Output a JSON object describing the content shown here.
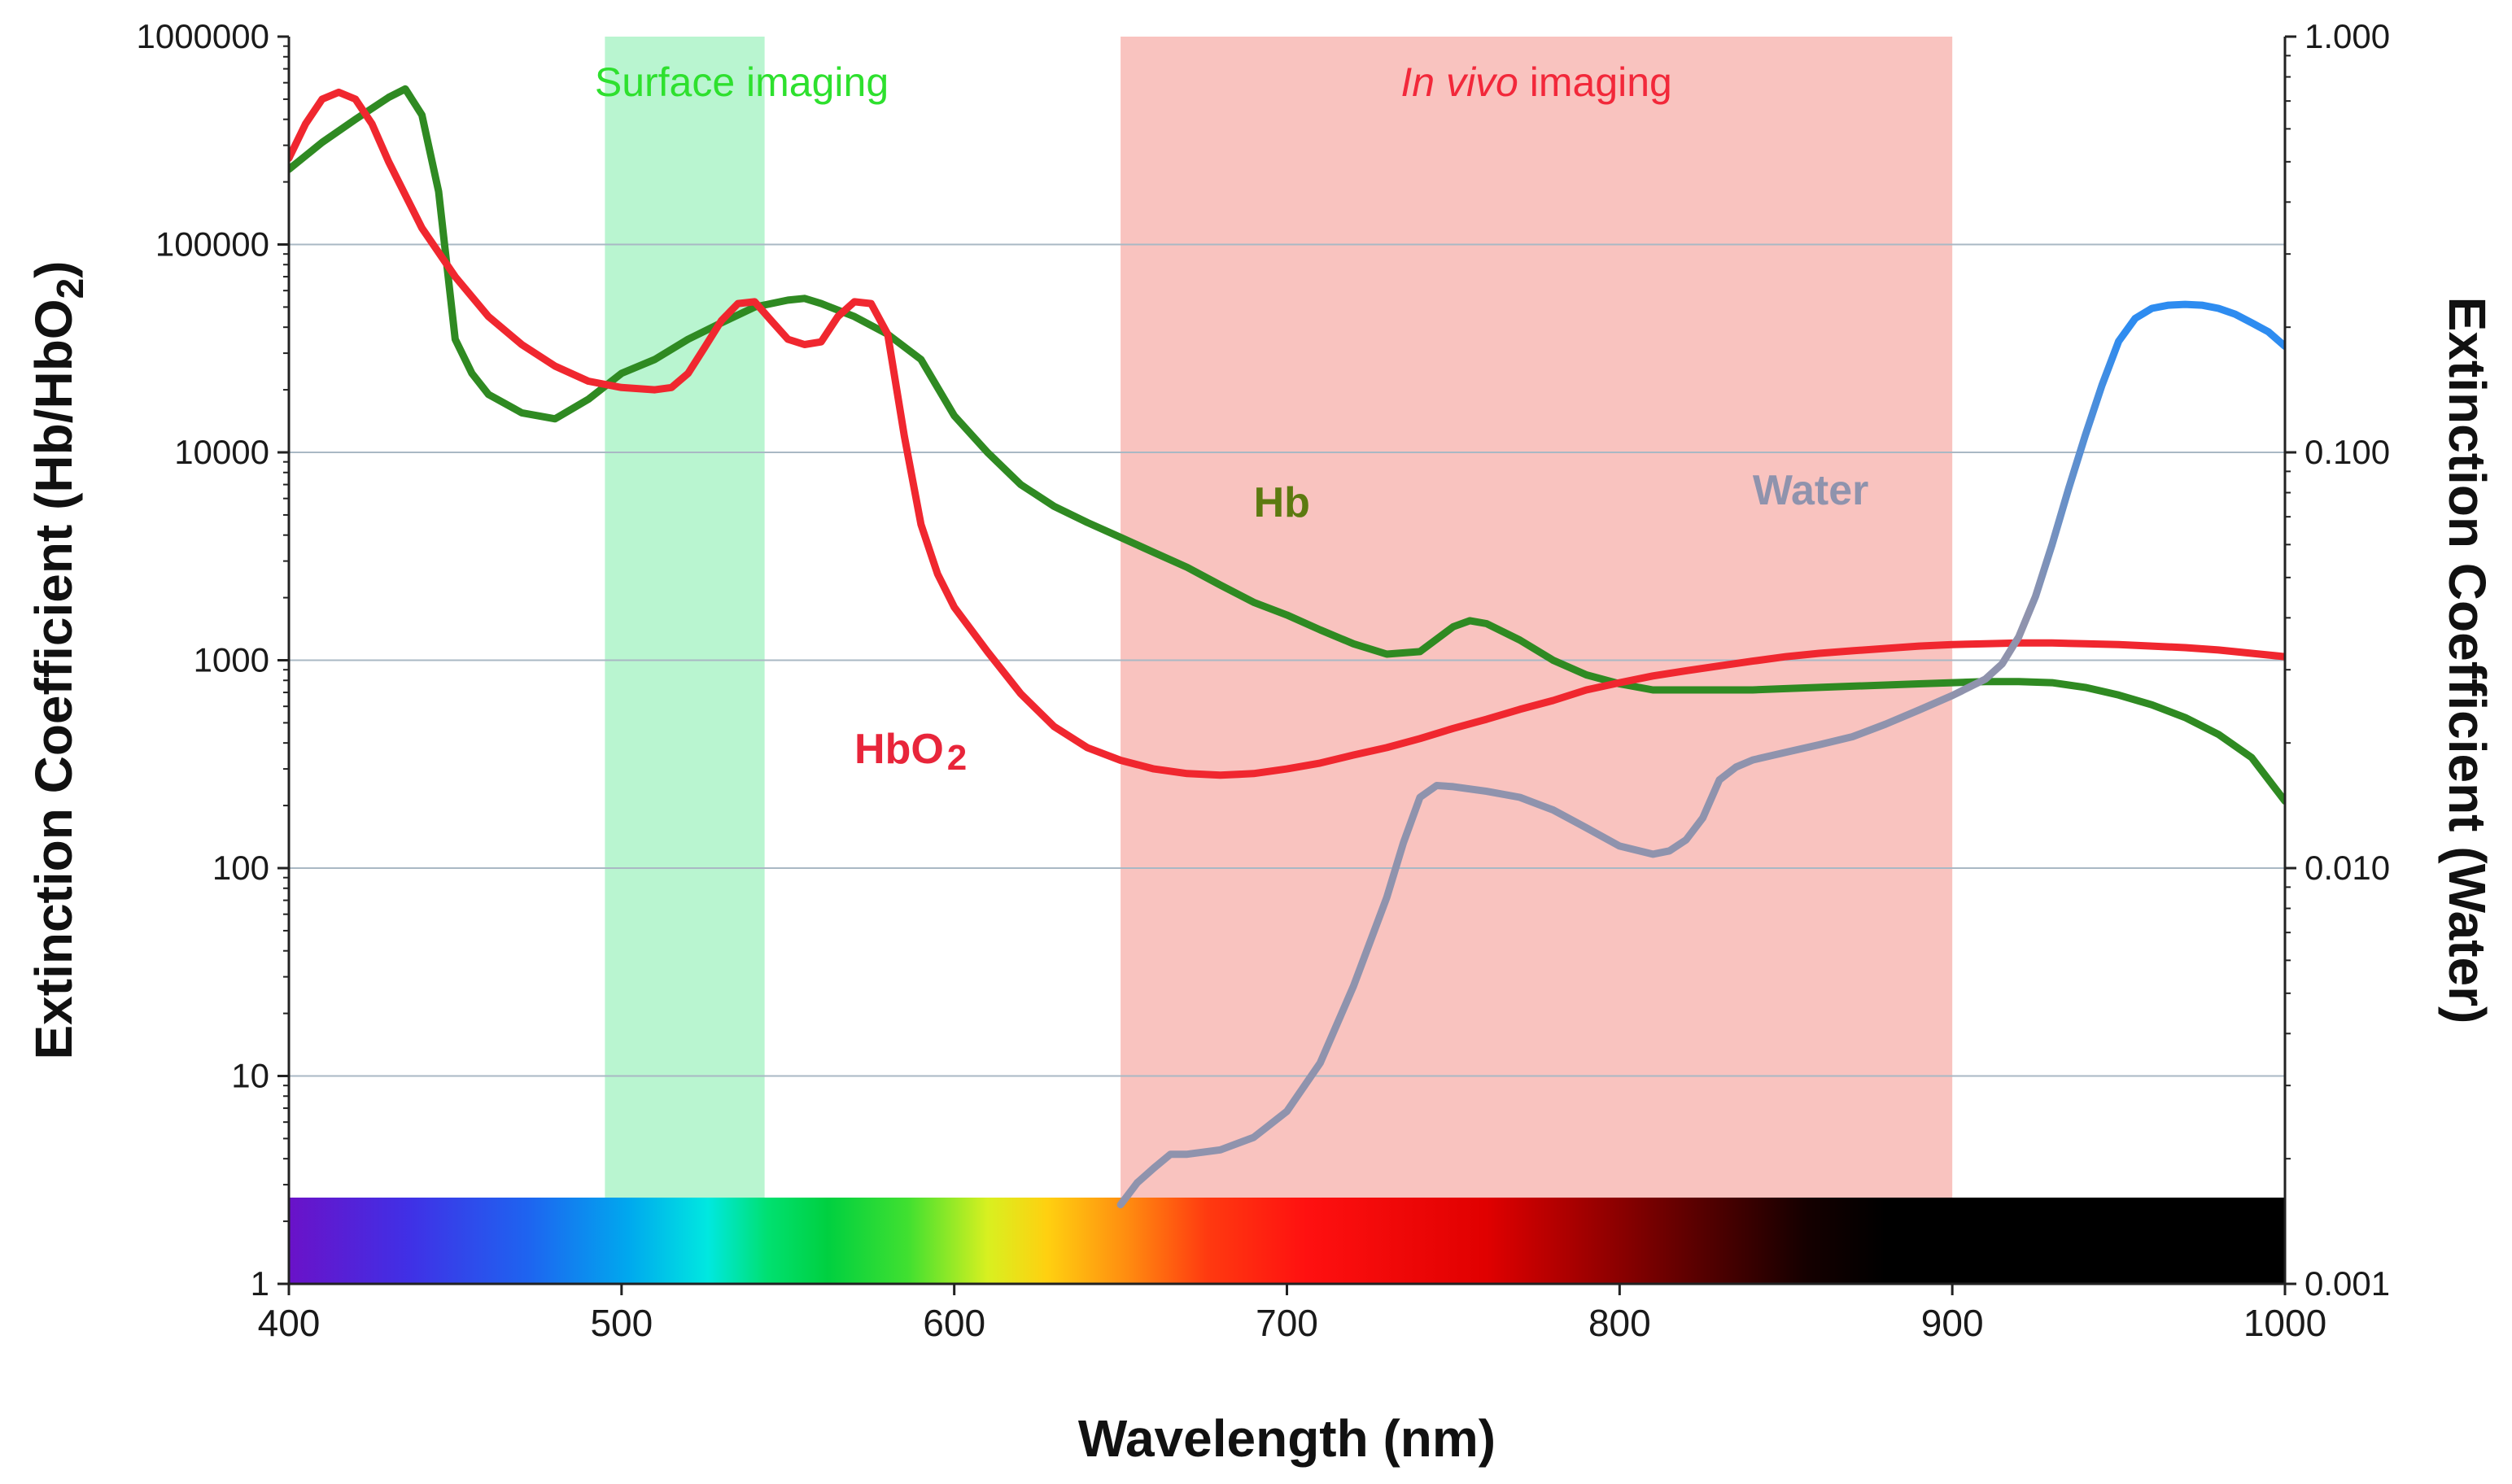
{
  "chart_data": {
    "type": "line",
    "xlabel": "Wavelength (nm)",
    "ylabel_left": "Extinction Coefficient (Hb/HbO2)",
    "ylabel_right": "Extinction Coefficient (Water)",
    "xlim": [
      400,
      1000
    ],
    "x_ticks": [
      "400",
      "500",
      "600",
      "700",
      "800",
      "900",
      "1000"
    ],
    "y_left_scale": "log",
    "y_left_lim": [
      1,
      1000000
    ],
    "y_left_ticks": [
      "1",
      "10",
      "100",
      "1000",
      "10000",
      "100000",
      "1000000"
    ],
    "y_right_scale": "log",
    "y_right_lim": [
      0.001,
      1.0
    ],
    "y_right_ticks": [
      "0.001",
      "0.010",
      "0.100",
      "1.000"
    ],
    "grid": "horizontal",
    "bands": [
      {
        "label": "Surface imaging",
        "label_style": "normal",
        "x_range": [
          495,
          543
        ],
        "color": "#b9f5d0",
        "label_color": "#2ee02e"
      },
      {
        "label_italic": "In vivo",
        "label": " imaging",
        "x_range": [
          650,
          900
        ],
        "color": "#f9c3bf",
        "label_color": "#f2283a"
      }
    ],
    "spectrum_bar": {
      "x_range": [
        400,
        1000
      ],
      "y_range": [
        1,
        2.6
      ]
    },
    "series": [
      {
        "name": "Hb",
        "axis": "left",
        "color": "#2f8a22",
        "label_color": "#5c7a10",
        "x": [
          400,
          410,
          420,
          430,
          435,
          440,
          445,
          450,
          455,
          460,
          470,
          480,
          490,
          500,
          510,
          520,
          530,
          540,
          550,
          555,
          560,
          570,
          580,
          590,
          600,
          610,
          620,
          630,
          640,
          650,
          660,
          670,
          680,
          690,
          700,
          710,
          720,
          730,
          740,
          750,
          755,
          760,
          770,
          780,
          790,
          800,
          810,
          820,
          830,
          840,
          850,
          860,
          870,
          880,
          890,
          900,
          910,
          920,
          930,
          940,
          950,
          960,
          970,
          980,
          990,
          1000
        ],
        "y": [
          230000,
          310000,
          400000,
          510000,
          560000,
          420000,
          180000,
          35000,
          24000,
          19000,
          15500,
          14500,
          18000,
          24000,
          28000,
          35000,
          42000,
          50000,
          54000,
          55000,
          52000,
          45000,
          37000,
          28000,
          15000,
          10000,
          7000,
          5500,
          4600,
          3900,
          3300,
          2800,
          2300,
          1900,
          1650,
          1400,
          1200,
          1070,
          1100,
          1450,
          1550,
          1500,
          1250,
          1000,
          850,
          770,
          720,
          720,
          720,
          720,
          730,
          740,
          750,
          760,
          770,
          780,
          790,
          790,
          780,
          740,
          680,
          610,
          530,
          440,
          340,
          210
        ]
      },
      {
        "name": "HbO2",
        "axis": "left",
        "color": "#f0272f",
        "label_color": "#e8253a",
        "x": [
          400,
          405,
          410,
          415,
          420,
          425,
          430,
          440,
          450,
          460,
          470,
          480,
          490,
          500,
          510,
          515,
          520,
          525,
          530,
          535,
          540,
          545,
          550,
          555,
          560,
          565,
          570,
          575,
          580,
          585,
          590,
          595,
          600,
          610,
          620,
          630,
          640,
          650,
          660,
          670,
          680,
          690,
          700,
          710,
          720,
          730,
          740,
          750,
          760,
          770,
          780,
          790,
          800,
          810,
          820,
          830,
          840,
          850,
          860,
          870,
          880,
          890,
          900,
          910,
          920,
          930,
          940,
          950,
          960,
          970,
          980,
          990,
          1000
        ],
        "y": [
          260000,
          380000,
          500000,
          540000,
          500000,
          380000,
          250000,
          120000,
          70000,
          45000,
          33000,
          26000,
          22000,
          20500,
          20000,
          20500,
          24000,
          32000,
          43000,
          52000,
          53000,
          43000,
          35000,
          33000,
          34000,
          45000,
          53000,
          52000,
          37000,
          12000,
          4500,
          2600,
          1800,
          1100,
          690,
          480,
          380,
          330,
          300,
          285,
          280,
          285,
          300,
          320,
          350,
          380,
          420,
          470,
          520,
          580,
          640,
          720,
          780,
          840,
          890,
          940,
          990,
          1040,
          1080,
          1110,
          1140,
          1170,
          1190,
          1200,
          1210,
          1210,
          1200,
          1190,
          1170,
          1150,
          1120,
          1080,
          1040
        ]
      },
      {
        "name": "Water",
        "axis": "right",
        "color_start": "#8f93ad",
        "color_end": "#2e8cf0",
        "label_color": "#8f93ad",
        "x": [
          650,
          655,
          660,
          665,
          670,
          680,
          690,
          700,
          710,
          720,
          730,
          735,
          740,
          745,
          750,
          760,
          770,
          780,
          790,
          800,
          810,
          815,
          820,
          825,
          830,
          835,
          840,
          850,
          860,
          870,
          880,
          890,
          900,
          910,
          915,
          920,
          925,
          930,
          935,
          940,
          945,
          950,
          955,
          960,
          965,
          970,
          975,
          980,
          985,
          990,
          995,
          1000
        ],
        "y": [
          0.00155,
          0.00175,
          0.0019,
          0.00205,
          0.00205,
          0.0021,
          0.00225,
          0.0026,
          0.0034,
          0.0052,
          0.0085,
          0.0115,
          0.0148,
          0.0158,
          0.0157,
          0.0153,
          0.0148,
          0.0138,
          0.0125,
          0.0113,
          0.0108,
          0.011,
          0.0117,
          0.0132,
          0.0163,
          0.0175,
          0.0182,
          0.019,
          0.0198,
          0.0207,
          0.0222,
          0.024,
          0.026,
          0.0285,
          0.031,
          0.036,
          0.045,
          0.06,
          0.082,
          0.11,
          0.145,
          0.185,
          0.21,
          0.222,
          0.226,
          0.227,
          0.226,
          0.222,
          0.215,
          0.205,
          0.195,
          0.18
        ]
      }
    ],
    "series_labels": [
      {
        "text": "Hb",
        "series": "Hb"
      },
      {
        "text": "HbO",
        "sub": "2",
        "series": "HbO2"
      },
      {
        "text": "Water",
        "series": "Water"
      }
    ]
  }
}
